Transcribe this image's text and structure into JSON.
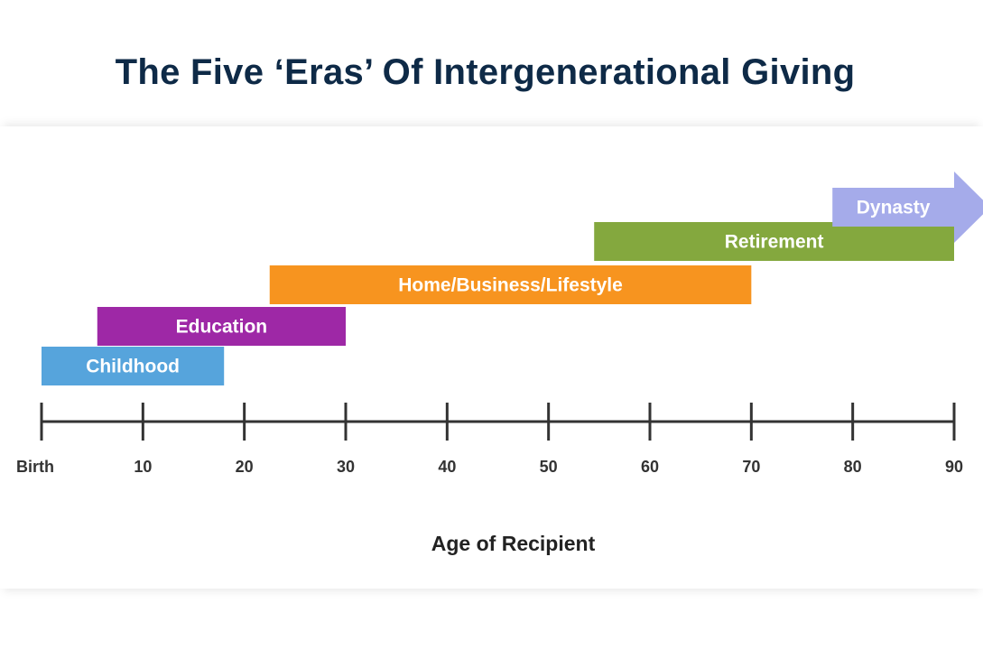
{
  "title": "The Five ‘Eras’ Of Intergenerational Giving",
  "chart_data": {
    "type": "bar",
    "orientation": "horizontal-range",
    "title": "The Five ‘Eras’ Of Intergenerational Giving",
    "xlabel": "Age of Recipient",
    "xlim": [
      0,
      90
    ],
    "ticks": [
      {
        "value": 0,
        "label": "Birth"
      },
      {
        "value": 10,
        "label": "10"
      },
      {
        "value": 20,
        "label": "20"
      },
      {
        "value": 30,
        "label": "30"
      },
      {
        "value": 40,
        "label": "40"
      },
      {
        "value": 50,
        "label": "50"
      },
      {
        "value": 60,
        "label": "60"
      },
      {
        "value": 70,
        "label": "70"
      },
      {
        "value": 80,
        "label": "80"
      },
      {
        "value": 90,
        "label": "90"
      }
    ],
    "eras": [
      {
        "name": "Childhood",
        "start": 0,
        "end": 18,
        "color": "#56a4dc",
        "open_ended": false
      },
      {
        "name": "Education",
        "start": 5.5,
        "end": 30,
        "color": "#9e28a6",
        "open_ended": false
      },
      {
        "name": "Home/Business/Lifestyle",
        "start": 22.5,
        "end": 70,
        "color": "#f7941f",
        "open_ended": false
      },
      {
        "name": "Retirement",
        "start": 54.5,
        "end": 90,
        "color": "#84a83e",
        "open_ended": false
      },
      {
        "name": "Dynasty",
        "start": 78,
        "end": 93,
        "color": "#a5abea",
        "open_ended": true
      }
    ]
  }
}
